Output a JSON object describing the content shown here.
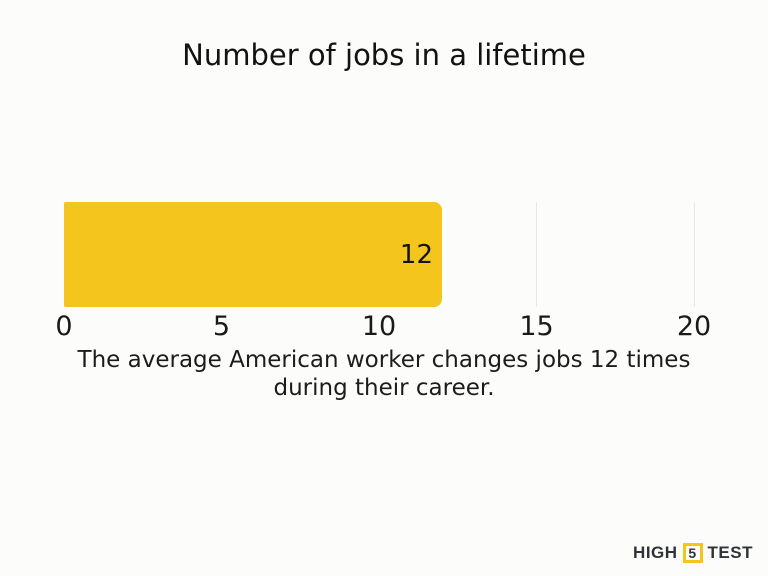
{
  "page": {
    "background_color": "#fcfcfb"
  },
  "chart_data": {
    "type": "bar",
    "orientation": "horizontal",
    "title": "Number of jobs in a lifetime",
    "categories": [
      "jobs in a lifetime"
    ],
    "values": [
      12
    ],
    "value_labels": [
      "12"
    ],
    "xlim": [
      0,
      20
    ],
    "x_ticks": [
      0,
      5,
      10,
      15,
      20
    ],
    "grid": "vertical gridlines at x ticks, light gray, no axis spines",
    "legend": "none",
    "bar_color": "#f3c51d",
    "gridline_color": "#e8e8e6",
    "caption_lines": [
      "The average American worker changes jobs 12 times",
      "during their career."
    ]
  },
  "logo": {
    "text_left": "HIGH",
    "badge_number": "5",
    "text_right": "TEST",
    "accent_color": "#f5c518",
    "text_color": "#2f3338"
  }
}
